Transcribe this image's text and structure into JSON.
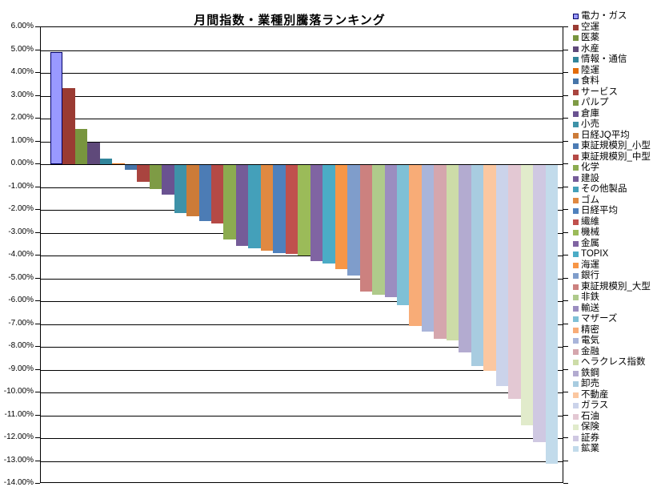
{
  "chart_data": {
    "type": "bar",
    "title": "月間指数・業種別騰落ランキング",
    "xlabel": "",
    "ylabel": "",
    "ylim": [
      -14,
      6
    ],
    "ytick_step": 1,
    "ytick_labels": [
      "6.00%",
      "5.00%",
      "4.00%",
      "3.00%",
      "2.00%",
      "1.00%",
      "0.00%",
      "-1.00%",
      "-2.00%",
      "-3.00%",
      "-4.00%",
      "-5.00%",
      "-6.00%",
      "-7.00%",
      "-8.00%",
      "-9.00%",
      "-10.00%",
      "-11.00%",
      "-12.00%",
      "-13.00%",
      "-14.00%"
    ],
    "grid": true,
    "legend_position": "right",
    "categories": [
      "電力・ガス",
      "空運",
      "医薬",
      "水産",
      "情報・通信",
      "陸運",
      "食料",
      "サービス",
      "パルプ",
      "倉庫",
      "小売",
      "日経JQ平均",
      "東証規模別_小型",
      "東証規模別_中型",
      "化学",
      "建設",
      "その他製品",
      "ゴム",
      "日経平均",
      "繊維",
      "機械",
      "金属",
      "TOPIX",
      "海運",
      "銀行",
      "東証規模別_大型",
      "非鉄",
      "輸送",
      "マザーズ",
      "精密",
      "電気",
      "金融",
      "ヘラクレス指数",
      "鉄鋼",
      "卸売",
      "不動産",
      "ガラス",
      "石油",
      "保険",
      "証券",
      "鉱業"
    ],
    "values": [
      4.9,
      3.35,
      1.55,
      0.95,
      0.25,
      0.05,
      -0.2,
      -0.75,
      -1.05,
      -1.3,
      -2.1,
      -2.25,
      -2.45,
      -2.55,
      -3.25,
      -3.55,
      -3.65,
      -3.75,
      -3.85,
      -3.9,
      -3.95,
      -4.2,
      -4.3,
      -4.55,
      -4.85,
      -5.55,
      -5.7,
      -5.8,
      -6.15,
      -7.05,
      -7.3,
      -7.6,
      -7.7,
      -8.2,
      -8.8,
      -9.0,
      -9.7,
      -10.25,
      -11.4,
      -12.15,
      -13.1
    ],
    "colors": [
      "#9999FF",
      "#9A3B33",
      "#78953E",
      "#5F497A",
      "#31859B",
      "#E36C0A",
      "#4675A9",
      "#A9443F",
      "#7E9B45",
      "#6A5291",
      "#3E92A8",
      "#CC7B38",
      "#4C7CB5",
      "#B54A46",
      "#8CAC50",
      "#755C98",
      "#44A0BA",
      "#E08941",
      "#4F81BD",
      "#C0504D",
      "#9BBB59",
      "#8064A2",
      "#4BACC6",
      "#F79646",
      "#7F9DCB",
      "#CC817F",
      "#AFCA8B",
      "#9B8DC0",
      "#7FC0D6",
      "#F8AC77",
      "#A9B5DA",
      "#D5A6AD",
      "#CDDCA8",
      "#B3ABD0",
      "#A8CCE0",
      "#FBC7A0",
      "#CBD3EA",
      "#E3C8D3",
      "#E1EBCB",
      "#CFC8E2",
      "#C2DBEB"
    ],
    "first_series_border_color": "#000066",
    "gridline_color": "#000000",
    "background_color": "#FFFFFF"
  }
}
